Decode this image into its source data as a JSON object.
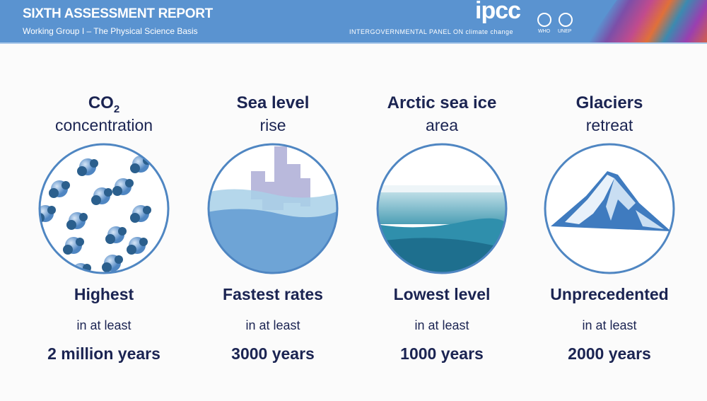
{
  "header": {
    "title": "SIXTH ASSESSMENT REPORT",
    "subtitle": "Working Group I – The Physical Science Basis",
    "logo": "ipcc",
    "org_name": "INTERGOVERNMENTAL PANEL ON climate change",
    "partners": [
      "WHO",
      "UNEP"
    ]
  },
  "colors": {
    "header_bg": "#5a93d0",
    "text": "#1b2452",
    "accent": "#5b8fcf",
    "dark_accent": "#2f6aa1"
  },
  "cards": [
    {
      "title": "CO",
      "title_sub": "2",
      "subtitle": "concentration",
      "highlight": "Highest",
      "qualifier": "in at least",
      "period": "2 million years",
      "icon": "co2-molecules-icon"
    },
    {
      "title": "Sea level",
      "subtitle": "rise",
      "highlight": "Fastest rates",
      "qualifier": "in at least",
      "period": "3000 years",
      "icon": "flooded-city-icon"
    },
    {
      "title": "Arctic sea ice",
      "subtitle": "area",
      "highlight": "Lowest level",
      "qualifier": "in at least",
      "period": "1000 years",
      "icon": "sea-ice-icon"
    },
    {
      "title": "Glaciers",
      "subtitle": "retreat",
      "highlight": "Unprecedented",
      "qualifier": "in at least",
      "period": "2000 years",
      "icon": "glacier-mountain-icon"
    }
  ]
}
